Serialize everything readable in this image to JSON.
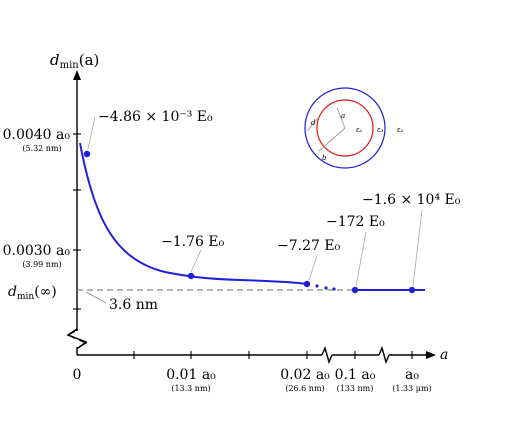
{
  "chart_data": {
    "type": "line",
    "title": "",
    "xlabel": "a",
    "ylabel": "d_min(a)",
    "x_axis": {
      "scale": "broken",
      "segments": [
        {
          "ticks": [
            {
              "value": "0",
              "label": "0",
              "sub": ""
            },
            {
              "value": "0.01 a0",
              "label": "0.01 a₀",
              "sub": "(13.3 nm)"
            },
            {
              "value": "0.02 a0",
              "label": "0.02 a₀",
              "sub": "(26.6 nm)"
            }
          ]
        },
        {
          "ticks": [
            {
              "value": "0.1 a0",
              "label": "0.1 a₀",
              "sub": "(133 nm)"
            }
          ]
        },
        {
          "ticks": [
            {
              "value": "a0",
              "label": "a₀",
              "sub": "(1.33 μm)"
            }
          ]
        }
      ]
    },
    "y_axis": {
      "ticks": [
        {
          "value": "0.0040 a0",
          "label": "0.0040 a₀",
          "sub": "(5.32 nm)"
        },
        {
          "value": "0.0030 a0",
          "label": "0.0030 a₀",
          "sub": "(3.99 nm)"
        },
        {
          "value": "d_min(∞)",
          "label": "d_min(∞)",
          "sub": ""
        }
      ],
      "break_near_bottom": true
    },
    "series": [
      {
        "color": "#1f1fd6",
        "style": "solid",
        "points": [
          {
            "a_over_a0": 0.001,
            "d_over_a0": 0.00384
          },
          {
            "a_over_a0": 0.002,
            "d_over_a0": 0.00358
          },
          {
            "a_over_a0": 0.003,
            "d_over_a0": 0.00334
          },
          {
            "a_over_a0": 0.004,
            "d_over_a0": 0.00314
          },
          {
            "a_over_a0": 0.005,
            "d_over_a0": 0.003
          },
          {
            "a_over_a0": 0.006,
            "d_over_a0": 0.00289
          },
          {
            "a_over_a0": 0.008,
            "d_over_a0": 0.00278
          },
          {
            "a_over_a0": 0.01,
            "d_over_a0": 0.00274
          },
          {
            "a_over_a0": 0.013,
            "d_over_a0": 0.00271
          },
          {
            "a_over_a0": 0.016,
            "d_over_a0": 0.0027
          },
          {
            "a_over_a0": 0.02,
            "d_over_a0": 0.00268
          }
        ]
      }
    ],
    "labeled_points": [
      {
        "a": "0.001 a0",
        "energy": "−4.86 × 10⁻³ E₀"
      },
      {
        "a": "0.01 a0",
        "energy": "−1.76 E₀"
      },
      {
        "a": "0.02 a0",
        "energy": "−7.27 E₀"
      },
      {
        "a": "0.1 a0",
        "energy": "−172 E₀"
      },
      {
        "a": "a0",
        "energy": "−1.6 × 10⁴ E₀"
      }
    ],
    "asymptote": {
      "label": "d_min(∞)",
      "value_label": "3.6 nm",
      "style": "dashed",
      "color": "#888888"
    },
    "inset": {
      "description_labels": [
        "a",
        "b",
        "d",
        "ε₁",
        "ε₃",
        "ε₂"
      ],
      "inner_circle_color": "#e01b1b",
      "outer_circle_color": "#1f1fd6"
    },
    "grid": false,
    "legend": "none"
  },
  "labels": {
    "ylabel_main": "d",
    "ylabel_sub": "min",
    "ylabel_arg": "(a)",
    "xlabel": "a",
    "y_tick_1": "0.0040 a₀",
    "y_tick_1_sub": "(5.32 nm)",
    "y_tick_2": "0.0030 a₀",
    "y_tick_2_sub": "(3.99 nm)",
    "y_tick_3_main": "d",
    "y_tick_3_sub": "min",
    "y_tick_3_arg": "(∞)",
    "asymptote_value": "3.6 nm",
    "x_tick_0": "0",
    "x_tick_1": "0.01 a₀",
    "x_tick_1_sub": "(13.3 nm)",
    "x_tick_2": "0.02 a₀",
    "x_tick_2_sub": "(26.6 nm)",
    "x_tick_3": "0.1 a₀",
    "x_tick_3_sub": "(133 nm)",
    "x_tick_4": "a₀",
    "x_tick_4_sub": "(1.33 μm)",
    "energy_1": "−4.86 × 10⁻³ E₀",
    "energy_2": "−1.76 E₀",
    "energy_3": "−7.27 E₀",
    "energy_4": "−172 E₀",
    "energy_5": "−1.6 × 10⁴ E₀",
    "inset_a": "a",
    "inset_b": "b",
    "inset_d": "d",
    "inset_e1": "ε₁",
    "inset_e2": "ε₂",
    "inset_e3": "ε₃"
  }
}
